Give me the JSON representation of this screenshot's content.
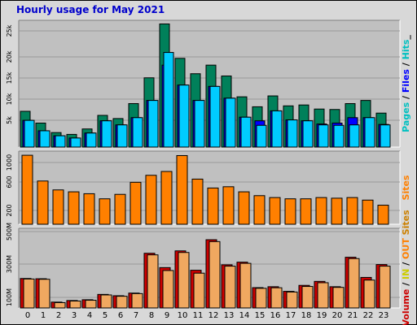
{
  "chart_data": [
    {
      "type": "bar",
      "title": "Hourly usage for May 2021",
      "categories": [
        "0",
        "1",
        "2",
        "3",
        "4",
        "5",
        "6",
        "7",
        "8",
        "9",
        "10",
        "11",
        "12",
        "13",
        "14",
        "15",
        "16",
        "17",
        "18",
        "19",
        "20",
        "21",
        "22",
        "23"
      ],
      "yticks": [
        "5k",
        "10k",
        "15k",
        "20k",
        "25k"
      ],
      "ylim": [
        0,
        28000
      ],
      "series": [
        {
          "name": "Pages",
          "color": "#00805a",
          "values": [
            7900,
            5300,
            3200,
            2800,
            4000,
            7000,
            6300,
            9600,
            15300,
            27200,
            19600,
            16200,
            18100,
            15700,
            11100,
            8900,
            11300,
            9100,
            9300,
            8400,
            8300,
            9600,
            10300,
            7500
          ]
        },
        {
          "name": "Files",
          "color": "#0000ff",
          "values": [
            5900,
            3600,
            2500,
            2000,
            3100,
            5800,
            4900,
            6500,
            10300,
            18100,
            13700,
            10300,
            13400,
            10800,
            6600,
            5800,
            8000,
            6000,
            5800,
            5100,
            5300,
            6500,
            6500,
            5000
          ]
        },
        {
          "name": "Hits",
          "color": "#00ccff",
          "values": [
            5900,
            3600,
            2500,
            2000,
            3100,
            5800,
            4900,
            6500,
            10300,
            20900,
            13700,
            10300,
            13400,
            10800,
            6600,
            4800,
            8000,
            6000,
            5800,
            4900,
            4800,
            4900,
            6500,
            4900
          ]
        }
      ],
      "side_labels": [
        "Pages",
        " / ",
        "Files",
        " / ",
        "Hits",
        "_"
      ],
      "side_colors": [
        "#00c0c0",
        "#000000",
        "#0000ff",
        "#000000",
        "#00c0c0",
        "#000000"
      ]
    },
    {
      "type": "bar",
      "categories": [
        "0",
        "1",
        "2",
        "3",
        "4",
        "5",
        "6",
        "7",
        "8",
        "9",
        "10",
        "11",
        "12",
        "13",
        "14",
        "15",
        "16",
        "17",
        "18",
        "19",
        "20",
        "21",
        "22",
        "23"
      ],
      "yticks": [
        "200",
        "600",
        "1000"
      ],
      "ylim": [
        0,
        1150
      ],
      "series": [
        {
          "name": "Sites",
          "color": "#ff8000",
          "values": [
            1085,
            680,
            540,
            510,
            480,
            400,
            470,
            660,
            770,
            830,
            1080,
            710,
            570,
            590,
            510,
            450,
            420,
            400,
            400,
            420,
            410,
            420,
            380,
            300
          ]
        }
      ],
      "side_labels": [
        "Sites"
      ],
      "side_colors": [
        "#ff8000"
      ]
    },
    {
      "type": "bar",
      "categories": [
        "0",
        "1",
        "2",
        "3",
        "4",
        "5",
        "6",
        "7",
        "8",
        "9",
        "10",
        "11",
        "12",
        "13",
        "14",
        "15",
        "16",
        "17",
        "18",
        "19",
        "20",
        "21",
        "22",
        "23"
      ],
      "yticks": [
        "100M",
        "300M",
        "500M"
      ],
      "ylim": [
        0,
        600
      ],
      "series": [
        {
          "name": "Volume",
          "color": "#cc0000",
          "values": [
            222,
            220,
            44,
            56,
            62,
            102,
            92,
            112,
            412,
            304,
            430,
            284,
            514,
            325,
            345,
            153,
            160,
            125,
            170,
            200,
            160,
            382,
            230,
            327
          ]
        },
        {
          "name": "IN",
          "color": "#ff8000",
          "values": [
            218,
            216,
            40,
            52,
            58,
            98,
            88,
            108,
            400,
            282,
            418,
            262,
            500,
            315,
            336,
            148,
            152,
            120,
            162,
            190,
            155,
            372,
            210,
            315
          ]
        },
        {
          "name": "OUT",
          "color": "#f0a860",
          "values": [
            218,
            216,
            40,
            52,
            58,
            98,
            88,
            108,
            400,
            282,
            418,
            262,
            500,
            315,
            336,
            148,
            152,
            120,
            162,
            190,
            155,
            372,
            210,
            315
          ]
        }
      ],
      "side_labels": [
        "Volume",
        " / ",
        "IN",
        " / ",
        "OUT",
        " Sites"
      ],
      "side_colors": [
        "#cc0000",
        "#000000",
        "#cccc00",
        "#000000",
        "#ff8000",
        "#cc8000"
      ]
    }
  ]
}
